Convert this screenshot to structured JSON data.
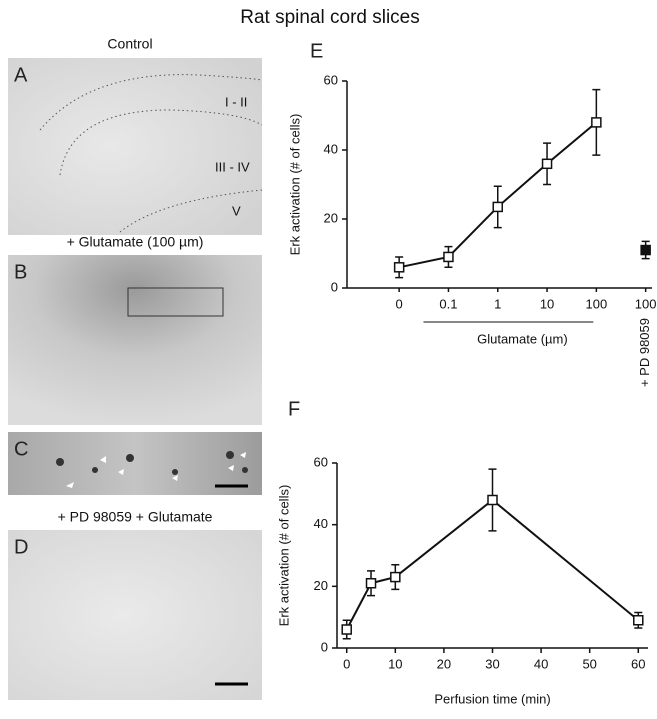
{
  "title": "Rat spinal cord slices",
  "panels": [
    {
      "letter": "A",
      "caption": "Control",
      "regions": [
        "I - II",
        "III - IV",
        "V"
      ]
    },
    {
      "letter": "B",
      "caption": "+ Glutamate (100 µm)"
    },
    {
      "letter": "C"
    },
    {
      "letter": "D",
      "caption": "+ PD 98059 + Glutamate"
    }
  ],
  "chart_data": [
    {
      "type": "errorbar-category",
      "panel": "E",
      "ylabel": "Erk activation (# of cells)",
      "categories": [
        "0",
        "0.1",
        "1",
        "10",
        "100",
        "100"
      ],
      "group_label": "Glutamate (µm)",
      "extra_label": "+ PD 98059",
      "series": [
        {
          "values": [
            6,
            9,
            23.5,
            36,
            48,
            null
          ],
          "errors": [
            3,
            3,
            6,
            6,
            9.5,
            null
          ],
          "marker": "open",
          "line": true
        },
        {
          "values": [
            null,
            null,
            null,
            null,
            null,
            11
          ],
          "errors": [
            null,
            null,
            null,
            null,
            null,
            2.5
          ],
          "marker": "filled",
          "line": false
        }
      ],
      "color": "#111",
      "ylim": [
        0,
        60
      ],
      "yticks": [
        0,
        20,
        40,
        60
      ]
    },
    {
      "type": "errorbar-line",
      "panel": "F",
      "ylabel": "Erk activation (# of cells)",
      "xlabel": "Perfusion time (min)",
      "x": [
        0,
        5,
        10,
        30,
        60
      ],
      "values": [
        6,
        21,
        23,
        48,
        9
      ],
      "errors": [
        3,
        4,
        4,
        10,
        2.5
      ],
      "marker": "open",
      "color": "#111",
      "xlim": [
        -2,
        62
      ],
      "xticks": [
        0,
        10,
        20,
        30,
        40,
        50,
        60
      ],
      "ylim": [
        0,
        60
      ],
      "yticks": [
        0,
        20,
        40,
        60
      ]
    }
  ]
}
